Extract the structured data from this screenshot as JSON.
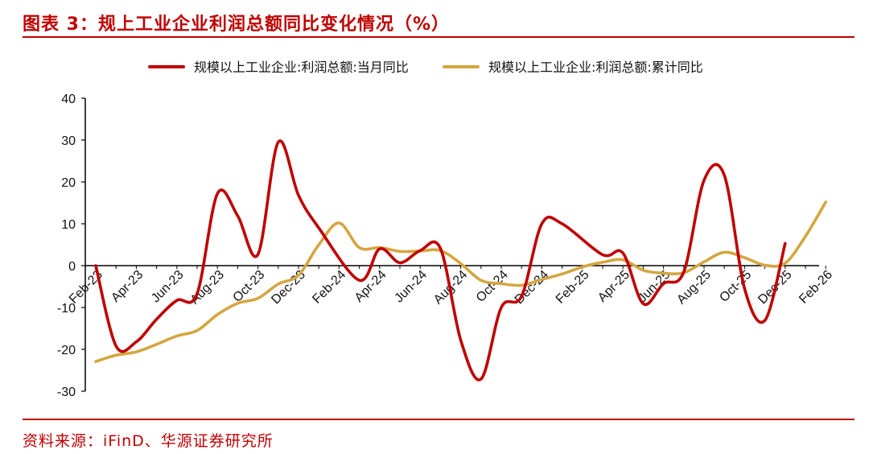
{
  "header": {
    "title": "图表 3：规上工业企业利润总额同比变化情况（%）"
  },
  "footer": {
    "source": "资料来源：iFinD、华源证券研究所"
  },
  "colors": {
    "accent": "#c00000",
    "series_monthly": "#c00000",
    "series_cumulative": "#d4a640"
  },
  "chart_data": {
    "type": "line",
    "title": "",
    "xlabel": "",
    "ylabel": "",
    "ylim": [
      -30,
      40
    ],
    "y_ticks": [
      40,
      30,
      20,
      10,
      0,
      -10,
      -20,
      -30
    ],
    "x_tick_labels": [
      "Feb-23",
      "Apr-23",
      "Jun-23",
      "Aug-23",
      "Oct-23",
      "Dec-23",
      "Feb-24",
      "Apr-24",
      "Jun-24",
      "Aug-24",
      "Oct-24",
      "Dec-24",
      "Feb-25",
      "Apr-25",
      "Jun-25",
      "Aug-25",
      "Oct-25",
      "Dec-25",
      "Feb-26"
    ],
    "legend_position": "top",
    "grid": false,
    "series": [
      {
        "name": "规模以上工业企业:利润总额:当月同比",
        "color": "#c00000",
        "points": [
          [
            "2023-02",
            0
          ],
          [
            "2023-03",
            -19.2
          ],
          [
            "2023-04",
            -18.2
          ],
          [
            "2023-05",
            -12.8
          ],
          [
            "2023-06",
            -8.3
          ],
          [
            "2023-07",
            -6.7
          ],
          [
            "2023-08",
            17.2
          ],
          [
            "2023-09",
            11.9
          ],
          [
            "2023-10",
            2.7
          ],
          [
            "2023-11",
            29.5
          ],
          [
            "2023-12",
            16.8
          ],
          [
            "2024-01",
            9.0
          ],
          [
            "2024-03",
            -3.5
          ],
          [
            "2024-04",
            4.0
          ],
          [
            "2024-05",
            0.7
          ],
          [
            "2024-06",
            3.6
          ],
          [
            "2024-07",
            4.1
          ],
          [
            "2024-08",
            -17.8
          ],
          [
            "2024-09",
            -27.1
          ],
          [
            "2024-10",
            -10.0
          ],
          [
            "2024-11",
            -7.3
          ],
          [
            "2024-12",
            10.0
          ],
          [
            "2025-01",
            10.0
          ],
          [
            "2025-03",
            2.6
          ],
          [
            "2025-04",
            3.0
          ],
          [
            "2025-05",
            -9.1
          ],
          [
            "2025-06",
            -4.3
          ],
          [
            "2025-07",
            -1.5
          ],
          [
            "2025-08",
            20.4
          ],
          [
            "2025-09",
            21.6
          ],
          [
            "2025-10",
            -5.5
          ],
          [
            "2025-11",
            -13.1
          ],
          [
            "2025-12",
            5.3
          ]
        ]
      },
      {
        "name": "规模以上工业企业:利润总额:累计同比",
        "color": "#d4a640",
        "points": [
          [
            "2023-02",
            -22.9
          ],
          [
            "2023-03",
            -21.4
          ],
          [
            "2023-04",
            -20.6
          ],
          [
            "2023-05",
            -18.8
          ],
          [
            "2023-06",
            -16.8
          ],
          [
            "2023-07",
            -15.5
          ],
          [
            "2023-08",
            -11.7
          ],
          [
            "2023-09",
            -9.0
          ],
          [
            "2023-10",
            -7.8
          ],
          [
            "2023-11",
            -4.4
          ],
          [
            "2023-12",
            -2.3
          ],
          [
            "2024-01",
            5.0
          ],
          [
            "2024-02",
            10.2
          ],
          [
            "2024-03",
            4.3
          ],
          [
            "2024-04",
            4.3
          ],
          [
            "2024-05",
            3.4
          ],
          [
            "2024-06",
            3.5
          ],
          [
            "2024-07",
            3.6
          ],
          [
            "2024-08",
            0.5
          ],
          [
            "2024-09",
            -3.5
          ],
          [
            "2024-10",
            -4.3
          ],
          [
            "2024-11",
            -4.7
          ],
          [
            "2024-12",
            -3.3
          ],
          [
            "2025-01",
            -2.0
          ],
          [
            "2025-02",
            -0.3
          ],
          [
            "2025-03",
            0.8
          ],
          [
            "2025-04",
            1.4
          ],
          [
            "2025-05",
            -1.1
          ],
          [
            "2025-06",
            -1.8
          ],
          [
            "2025-07",
            -1.7
          ],
          [
            "2025-08",
            0.9
          ],
          [
            "2025-09",
            3.2
          ],
          [
            "2025-10",
            1.9
          ],
          [
            "2025-11",
            0.1
          ],
          [
            "2025-12",
            0.6
          ],
          [
            "2026-01",
            7.0
          ],
          [
            "2026-02",
            15.2
          ]
        ]
      }
    ]
  }
}
